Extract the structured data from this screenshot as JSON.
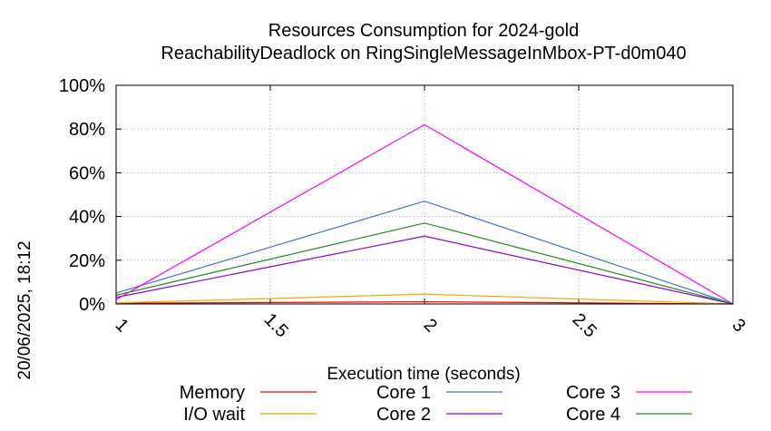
{
  "chart_data": {
    "type": "line",
    "title": "Resources Consumption for 2024-gold",
    "subtitle": "ReachabilityDeadlock on RingSingleMessageInMbox-PT-d0m040",
    "xlabel": "Execution time (seconds)",
    "ylabel": "",
    "timestamp": "20/06/2025, 18:12",
    "xlim": [
      1,
      3
    ],
    "ylim": [
      0,
      100
    ],
    "x_ticks": [
      "1",
      "1.5",
      "2",
      "2.5",
      "3"
    ],
    "x_tick_values": [
      1,
      1.5,
      2,
      2.5,
      3
    ],
    "y_ticks": [
      "0%",
      "20%",
      "40%",
      "60%",
      "80%",
      "100%"
    ],
    "y_tick_values": [
      0,
      20,
      40,
      60,
      80,
      100
    ],
    "grid": true,
    "legend_position": "bottom",
    "series": [
      {
        "name": "Memory",
        "color": "#ff0000",
        "x": [
          1,
          2,
          3
        ],
        "y": [
          0.3,
          1.0,
          0
        ]
      },
      {
        "name": "I/O wait",
        "color": "#ffa500",
        "x": [
          1,
          2,
          3
        ],
        "y": [
          0.5,
          4.5,
          0
        ]
      },
      {
        "name": "Core 1",
        "color": "#4472c4",
        "x": [
          1,
          2,
          3
        ],
        "y": [
          5,
          47,
          0
        ]
      },
      {
        "name": "Core 2",
        "color": "#9400d3",
        "x": [
          1,
          2,
          3
        ],
        "y": [
          3,
          31,
          0
        ]
      },
      {
        "name": "Core 3",
        "color": "#ff00ff",
        "x": [
          1,
          2,
          3
        ],
        "y": [
          2,
          82,
          0
        ]
      },
      {
        "name": "Core 4",
        "color": "#228b22",
        "x": [
          1,
          2,
          3
        ],
        "y": [
          4,
          37,
          0
        ]
      }
    ]
  }
}
